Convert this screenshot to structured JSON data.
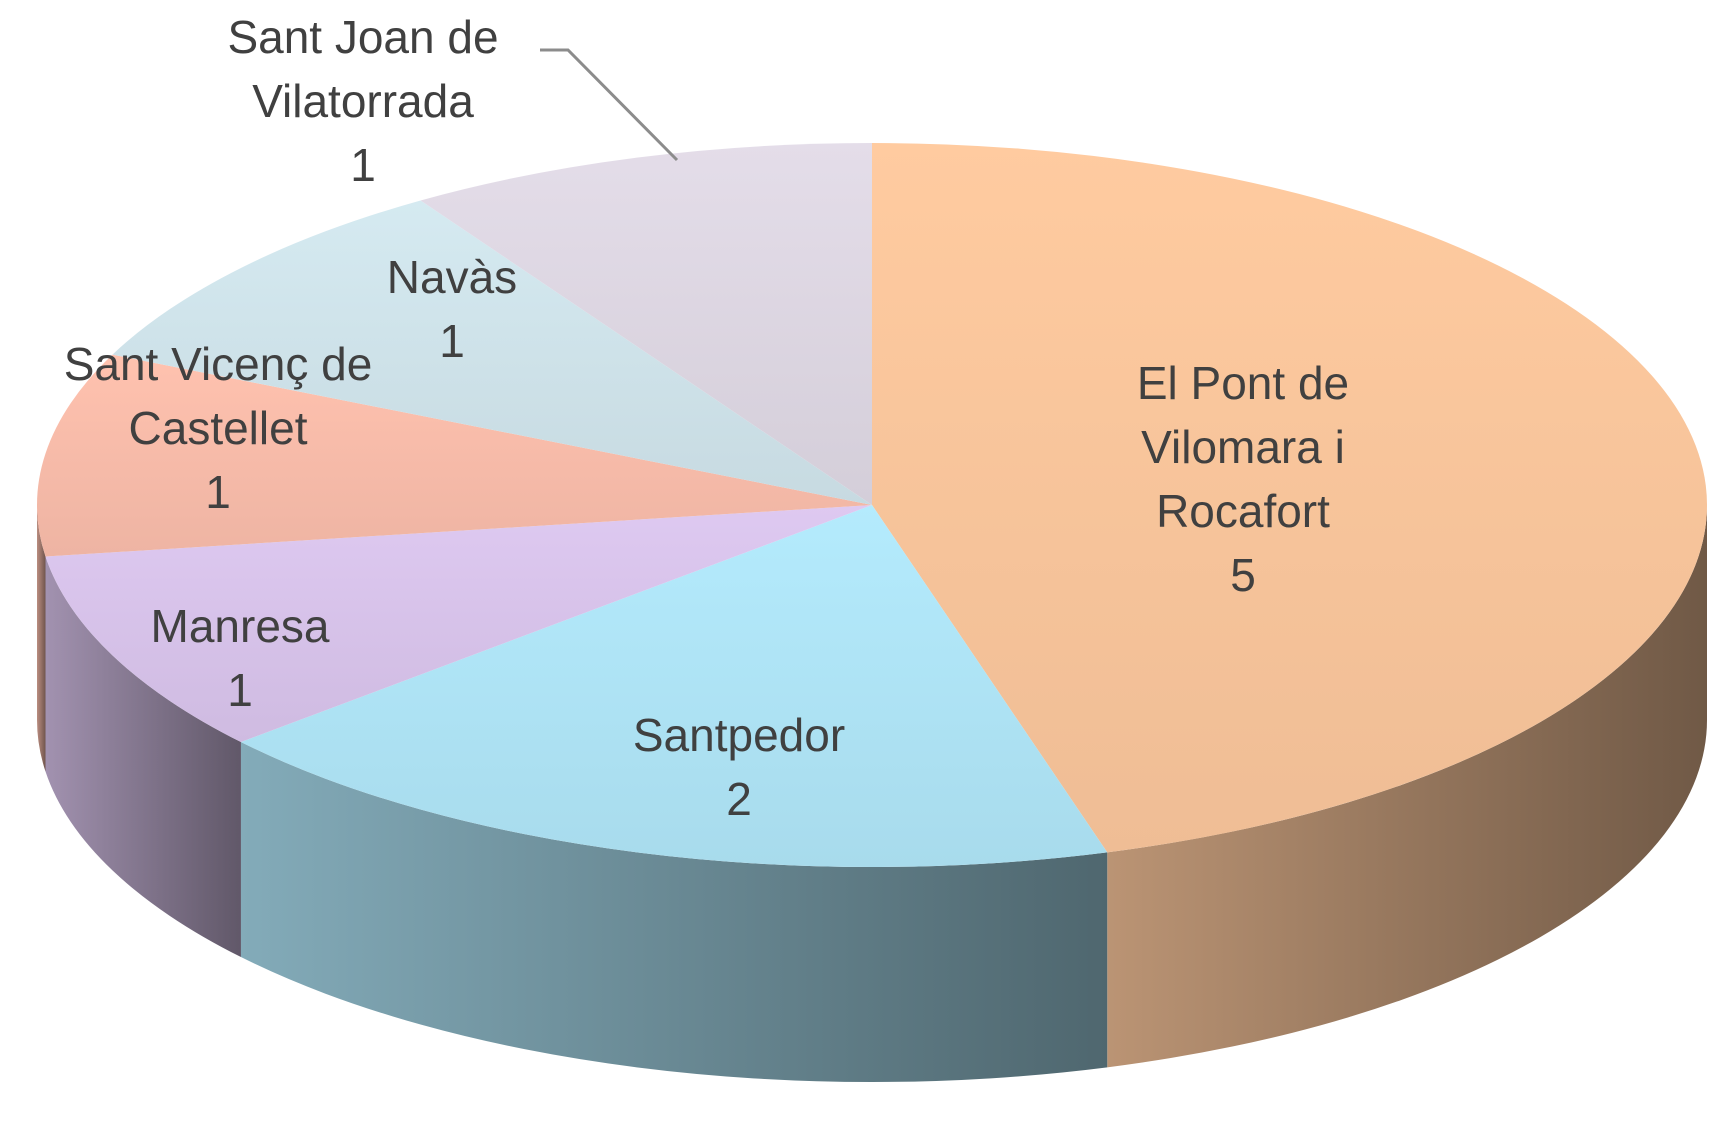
{
  "chart_data": {
    "type": "pie",
    "3d": true,
    "categories": [
      "El Pont de Vilomara i Rocafort",
      "Santpedor",
      "Manresa",
      "Sant Vicenç de Castellet",
      "Navàs",
      "Sant Joan de Vilatorrada"
    ],
    "values": [
      5,
      2,
      1,
      1,
      1,
      1
    ],
    "colors": [
      "#f9c59b",
      "#afe4f6",
      "#d8c3ea",
      "#f8bcaa",
      "#cfe3ea",
      "#ddd7e2"
    ]
  }
}
